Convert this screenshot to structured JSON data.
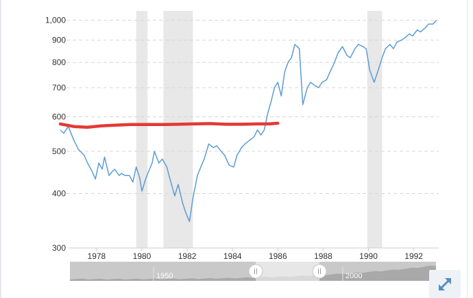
{
  "chart_data": {
    "type": "line",
    "title": "",
    "xlabel": "",
    "ylabel": "",
    "y_scale": "log",
    "xlim": [
      1976.4,
      1993.1
    ],
    "ylim": [
      300,
      1050
    ],
    "x_ticks": [
      "1978",
      "1980",
      "1982",
      "1984",
      "1986",
      "1988",
      "1990",
      "1992"
    ],
    "y_ticks": [
      "300",
      "400",
      "500",
      "600",
      "700",
      "800",
      "900",
      "1,000"
    ],
    "y_tick_values": [
      300,
      400,
      500,
      600,
      700,
      800,
      900,
      1000
    ],
    "grid": "horizontal-dashed",
    "recessions": [
      [
        1979.75,
        1980.25
      ],
      [
        1980.95,
        1982.25
      ],
      [
        1989.95,
        1990.6
      ]
    ],
    "colors": {
      "series": "#5b9bd5",
      "recession": "#e8e8e8",
      "annotation": "#e53935"
    },
    "series": [
      {
        "x": [
          1976.4,
          1976.55,
          1976.75,
          1977.0,
          1977.2,
          1977.45,
          1977.6,
          1977.8,
          1977.95,
          1978.1,
          1978.25,
          1978.35,
          1978.55,
          1978.7,
          1978.8,
          1979.0,
          1979.1,
          1979.25,
          1979.45,
          1979.6,
          1979.75,
          1979.9,
          1980.0,
          1980.15,
          1980.3,
          1980.45,
          1980.55,
          1980.75,
          1980.9,
          1981.1,
          1981.25,
          1981.45,
          1981.6,
          1981.8,
          1981.95,
          1982.1,
          1982.25,
          1982.45,
          1982.6,
          1982.75,
          1982.95,
          1983.15,
          1983.3,
          1983.5,
          1983.65,
          1983.85,
          1984.05,
          1984.2,
          1984.4,
          1984.55,
          1984.75,
          1984.95,
          1985.1,
          1985.25,
          1985.4,
          1985.55,
          1985.7,
          1985.85,
          1986.0,
          1986.15,
          1986.3,
          1986.45,
          1986.6,
          1986.75,
          1986.95,
          1987.1,
          1987.3,
          1987.45,
          1987.6,
          1987.8,
          1987.95,
          1988.15,
          1988.3,
          1988.5,
          1988.65,
          1988.85,
          1989.05,
          1989.2,
          1989.4,
          1989.55,
          1989.75,
          1989.9,
          1990.05,
          1990.25,
          1990.4,
          1990.6,
          1990.75,
          1990.95,
          1991.1,
          1991.25,
          1991.45,
          1991.6,
          1991.8,
          1991.95,
          1992.15,
          1992.3,
          1992.5,
          1992.65,
          1992.85,
          1993.0
        ],
        "y": [
          560,
          550,
          570,
          530,
          505,
          490,
          470,
          450,
          432,
          470,
          455,
          485,
          440,
          450,
          455,
          440,
          445,
          440,
          440,
          425,
          460,
          435,
          405,
          430,
          450,
          470,
          500,
          470,
          480,
          460,
          430,
          395,
          420,
          380,
          360,
          345,
          390,
          440,
          460,
          480,
          520,
          510,
          515,
          500,
          490,
          465,
          460,
          490,
          510,
          520,
          530,
          540,
          560,
          545,
          560,
          610,
          650,
          700,
          720,
          670,
          760,
          800,
          820,
          880,
          860,
          640,
          700,
          720,
          710,
          700,
          720,
          730,
          760,
          800,
          840,
          870,
          830,
          820,
          860,
          880,
          870,
          860,
          770,
          720,
          760,
          820,
          860,
          880,
          860,
          890,
          900,
          910,
          930,
          920,
          950,
          940,
          960,
          980,
          980,
          1000
        ]
      }
    ],
    "annotations": [
      {
        "type": "line",
        "x": [
          1976.4,
          1977.0,
          1977.6,
          1978.2,
          1978.8,
          1979.5,
          1980.2,
          1980.9,
          1981.6,
          1982.3,
          1983.0,
          1983.7,
          1984.4,
          1985.1,
          1985.6,
          1986.0
        ],
        "y": [
          578,
          570,
          568,
          572,
          574,
          576,
          576,
          576,
          577,
          578,
          579,
          577,
          577,
          578,
          578,
          580
        ]
      }
    ]
  },
  "navigator": {
    "labels": [
      "1950",
      "2000"
    ]
  }
}
